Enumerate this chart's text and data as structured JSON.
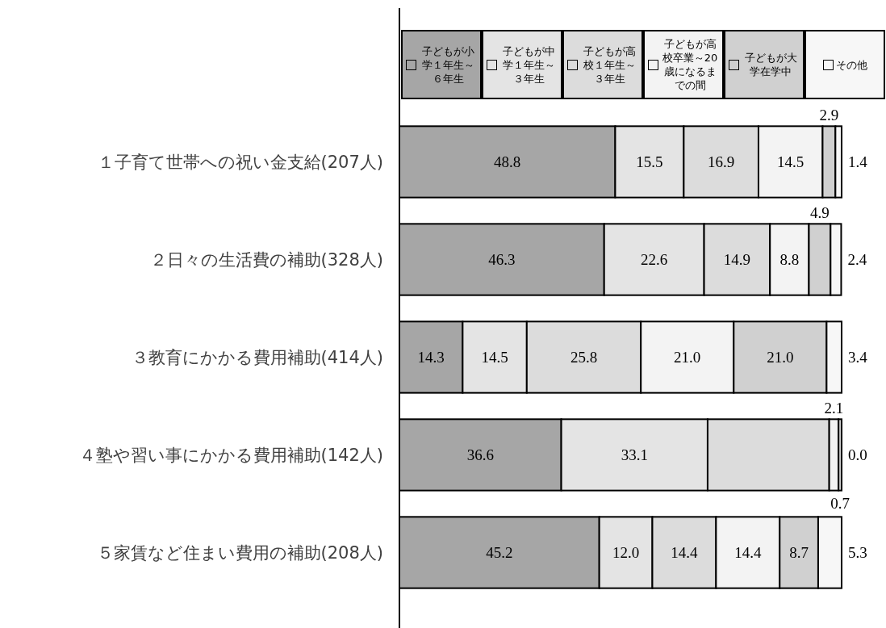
{
  "chart_data": {
    "type": "bar",
    "orientation": "horizontal",
    "stacked": true,
    "legend": "top",
    "categories": [
      "１子育て世帯への祝い金支給(207人)",
      "２日々の生活費の補助(328人)",
      "３教育にかかる費用補助(414人)",
      "４塾や習い事にかかる費用補助(142人)",
      "５家賃など住まい費用の補助(208人)"
    ],
    "series": [
      {
        "name": "子どもが小学１年生～６年生",
        "color": "#a6a6a6",
        "values": [
          48.8,
          46.3,
          14.3,
          36.6,
          45.2
        ],
        "value_labels": [
          "48.8",
          "46.3",
          "14.3",
          "36.6",
          "45.2"
        ]
      },
      {
        "name": "子どもが中学１年生～３年生",
        "color": "#e4e4e4",
        "values": [
          15.5,
          22.6,
          14.5,
          33.1,
          12.0
        ],
        "value_labels": [
          "15.5",
          "22.6",
          "14.5",
          "33.1",
          "12.0"
        ]
      },
      {
        "name": "子どもが高校１年生～３年生",
        "color": "#dcdcdc",
        "values": [
          16.9,
          14.9,
          25.8,
          27.5,
          14.4
        ],
        "value_labels": [
          "16.9",
          "14.9",
          "25.8",
          null,
          "14.4"
        ]
      },
      {
        "name": "子どもが高校卒業～20歳になるまでの間",
        "color": "#f3f3f3",
        "values": [
          14.5,
          8.8,
          21.0,
          2.1,
          14.4
        ],
        "value_labels": [
          "14.5",
          "8.8",
          "21.0",
          "2.1",
          "14.4"
        ]
      },
      {
        "name": "子どもが大学在学中",
        "color": "#d0d0d0",
        "values": [
          2.9,
          4.9,
          21.0,
          0.7,
          8.7
        ],
        "value_labels": [
          "2.9",
          "4.9",
          "21.0",
          "0.7",
          "8.7"
        ]
      },
      {
        "name": "その他",
        "color": "#f7f7f7",
        "values": [
          1.4,
          2.4,
          3.4,
          0.0,
          5.3
        ],
        "value_labels": [
          "1.4",
          "2.4",
          "3.4",
          "0.0",
          "5.3"
        ]
      }
    ]
  }
}
